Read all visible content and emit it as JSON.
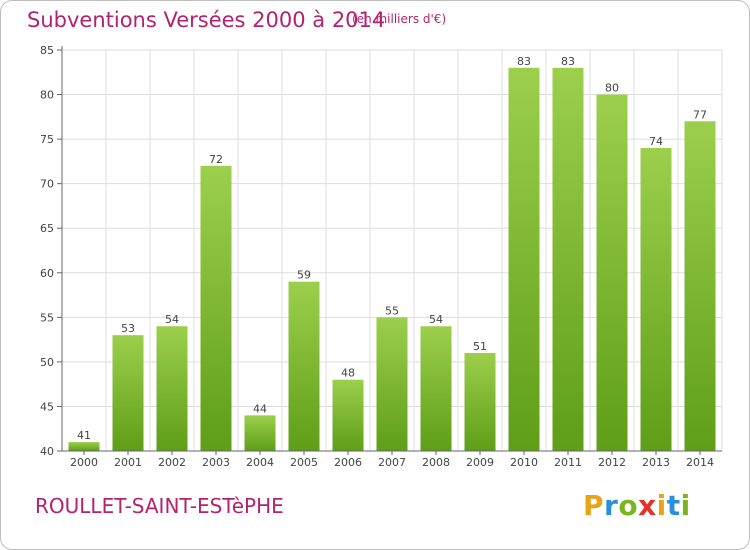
{
  "title": "Subventions Versées 2000 à 2014",
  "subtitle": "(en milliers d'€)",
  "commune": "ROULLET-SAINT-ESTèPHE",
  "logo": {
    "letters": [
      "P",
      "r",
      "o",
      "x",
      "i",
      "t",
      "i"
    ],
    "colors": [
      "#e8a317",
      "#2a8fd6",
      "#7ab51d",
      "#e2322b",
      "#e8a317",
      "#2a8fd6",
      "#7ab51d"
    ]
  },
  "colors": {
    "bar_top": "#9ccf4c",
    "bar_bottom": "#5f9e17",
    "grid": "#dddddd",
    "text_accent": "#b3226f"
  },
  "chart_data": {
    "type": "bar",
    "title": "Subventions Versées 2000 à 2014",
    "subtitle": "(en milliers d'€)",
    "categories": [
      "2000",
      "2001",
      "2002",
      "2003",
      "2004",
      "2005",
      "2006",
      "2007",
      "2008",
      "2009",
      "2010",
      "2011",
      "2012",
      "2013",
      "2014"
    ],
    "values": [
      41,
      53,
      54,
      72,
      44,
      59,
      48,
      55,
      54,
      51,
      83,
      83,
      80,
      74,
      77
    ],
    "ylim": [
      40,
      85
    ],
    "yticks": [
      40,
      45,
      50,
      55,
      60,
      65,
      70,
      75,
      80,
      85
    ],
    "grid": true,
    "xlabel": "",
    "ylabel": ""
  }
}
